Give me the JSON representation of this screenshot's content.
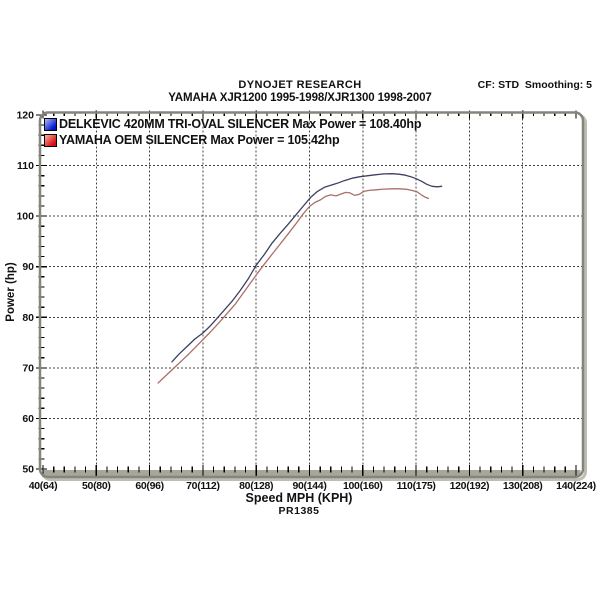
{
  "header": {
    "brand": "DYNOJET RESEARCH",
    "subtitle": "YAMAHA XJR1200 1995-1998/XJR1300 1998-2007",
    "settings": "CF: STD  Smoothing: 5"
  },
  "footer": {
    "run_id": "PR1385"
  },
  "colors": {
    "frame_border": "#85857d",
    "frame_shadow": "#bdbdb2",
    "axis_band": "#a6a699",
    "gridline": "#444444",
    "tick": "#000000",
    "text": "#111111"
  },
  "chart_data": {
    "type": "line",
    "title": "DYNOJET RESEARCH — YAMAHA XJR1200 1995-1998/XJR1300 1998-2007",
    "xlabel": "Speed MPH (KPH)",
    "ylabel": "Power (hp)",
    "footnote": "PR1385",
    "xlim": [
      40,
      140
    ],
    "ylim": [
      50,
      120
    ],
    "grid": true,
    "legend_position": "top-left",
    "x_major_ticks": [
      40,
      50,
      60,
      70,
      80,
      90,
      100,
      110,
      120,
      130,
      140
    ],
    "x_tick_labels": [
      "40(64)",
      "50(80)",
      "60(96)",
      "70(112)",
      "80(128)",
      "90(144)",
      "100(160)",
      "110(175)",
      "120(192)",
      "130(208)",
      "140(224)"
    ],
    "y_major_ticks": [
      50,
      60,
      70,
      80,
      90,
      100,
      110,
      120
    ],
    "x_minor_step": 2,
    "y_minor_step": 2,
    "series": [
      {
        "name": "DELKEVIC 420MM TRI-OVAL SILENCER Max Power = 108.40hp",
        "max_power_hp": 108.4,
        "line_color": "#3e4062",
        "swatch": [
          "#aebcff",
          "#0017c8"
        ],
        "points": [
          [
            64.2,
            71.2
          ],
          [
            65.5,
            72.7
          ],
          [
            67,
            74.2
          ],
          [
            68.5,
            75.7
          ],
          [
            70,
            76.9
          ],
          [
            71.2,
            78.1
          ],
          [
            72.5,
            79.6
          ],
          [
            74,
            81.4
          ],
          [
            75.5,
            83.2
          ],
          [
            77,
            85.3
          ],
          [
            78.5,
            87.6
          ],
          [
            80,
            90.3
          ],
          [
            81.5,
            92.4
          ],
          [
            83,
            94.7
          ],
          [
            84.5,
            96.6
          ],
          [
            86,
            98.4
          ],
          [
            87.5,
            100.3
          ],
          [
            89,
            102.2
          ],
          [
            90.2,
            103.7
          ],
          [
            91.5,
            104.9
          ],
          [
            92.8,
            105.7
          ],
          [
            94,
            106.1
          ],
          [
            95.2,
            106.5
          ],
          [
            96.5,
            107.0
          ],
          [
            98,
            107.5
          ],
          [
            99.5,
            107.8
          ],
          [
            101,
            108.0
          ],
          [
            102.5,
            108.2
          ],
          [
            104,
            108.35
          ],
          [
            105.5,
            108.4
          ],
          [
            106.8,
            108.3
          ],
          [
            108,
            108.1
          ],
          [
            109,
            107.8
          ],
          [
            110,
            107.4
          ],
          [
            111,
            106.9
          ],
          [
            112,
            106.3
          ],
          [
            113,
            105.9
          ],
          [
            114,
            105.8
          ],
          [
            114.8,
            105.9
          ]
        ]
      },
      {
        "name": "YAMAHA OEM SILENCER Max Power = 105.42hp",
        "max_power_hp": 105.42,
        "line_color": "#ab6f67",
        "swatch": [
          "#ffb0a8",
          "#d40f0f"
        ],
        "points": [
          [
            61.6,
            67.0
          ],
          [
            63,
            68.4
          ],
          [
            64.5,
            69.9
          ],
          [
            66,
            71.4
          ],
          [
            67.5,
            72.9
          ],
          [
            69,
            74.5
          ],
          [
            70.3,
            75.9
          ],
          [
            71.6,
            77.3
          ],
          [
            73,
            78.9
          ],
          [
            74.5,
            80.7
          ],
          [
            76,
            82.5
          ],
          [
            77.5,
            84.7
          ],
          [
            79,
            86.9
          ],
          [
            80.3,
            88.8
          ],
          [
            81.6,
            90.6
          ],
          [
            83,
            92.5
          ],
          [
            84.5,
            94.5
          ],
          [
            86,
            96.5
          ],
          [
            87.4,
            98.4
          ],
          [
            88.7,
            100.3
          ],
          [
            90,
            101.9
          ],
          [
            91,
            102.7
          ],
          [
            92,
            103.2
          ],
          [
            93,
            103.9
          ],
          [
            94,
            104.2
          ],
          [
            95,
            104.0
          ],
          [
            96,
            104.4
          ],
          [
            96.8,
            104.7
          ],
          [
            97.6,
            104.6
          ],
          [
            98.5,
            104.1
          ],
          [
            99.3,
            104.3
          ],
          [
            100.2,
            104.9
          ],
          [
            101.2,
            105.1
          ],
          [
            102.5,
            105.2
          ],
          [
            104,
            105.35
          ],
          [
            105.5,
            105.4
          ],
          [
            107,
            105.4
          ],
          [
            108.2,
            105.3
          ],
          [
            109.2,
            105.1
          ],
          [
            110.2,
            104.8
          ],
          [
            111,
            104.2
          ],
          [
            111.8,
            103.7
          ],
          [
            112.3,
            103.5
          ]
        ]
      }
    ]
  }
}
